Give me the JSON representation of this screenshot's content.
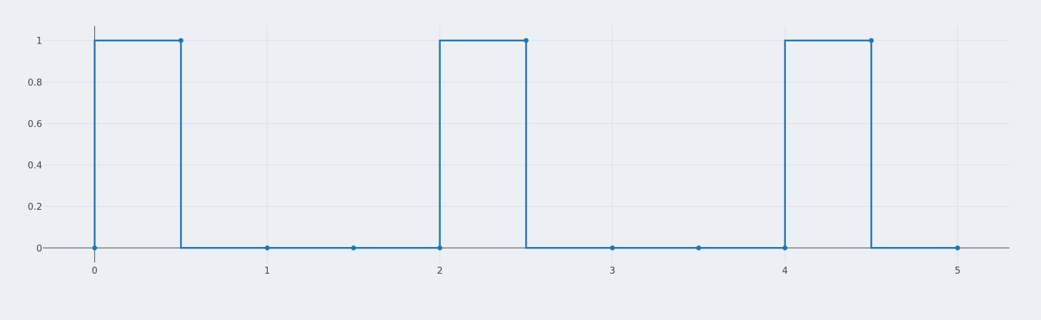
{
  "chart_data": {
    "type": "line",
    "line_shape": "step",
    "title": "",
    "xlabel": "",
    "ylabel": "",
    "xlim": [
      -0.3,
      5.3
    ],
    "ylim": [
      -0.07,
      1.07
    ],
    "x_ticks": [
      0,
      1,
      2,
      3,
      4,
      5
    ],
    "y_ticks": [
      0,
      0.2,
      0.4,
      0.6,
      0.8,
      1
    ],
    "x_tick_labels": [
      "0",
      "1",
      "2",
      "3",
      "4",
      "5"
    ],
    "y_tick_labels": [
      "0",
      "0.2",
      "0.4",
      "0.6",
      "0.8",
      "1"
    ],
    "grid": true,
    "series": [
      {
        "color": "#1f77b4",
        "x": [
          0,
          0.5,
          1,
          1.5,
          2,
          2.5,
          3,
          3.5,
          4,
          4.5,
          5
        ],
        "y": [
          0,
          1,
          0,
          0,
          0,
          1,
          0,
          0,
          0,
          1,
          0
        ]
      }
    ]
  }
}
